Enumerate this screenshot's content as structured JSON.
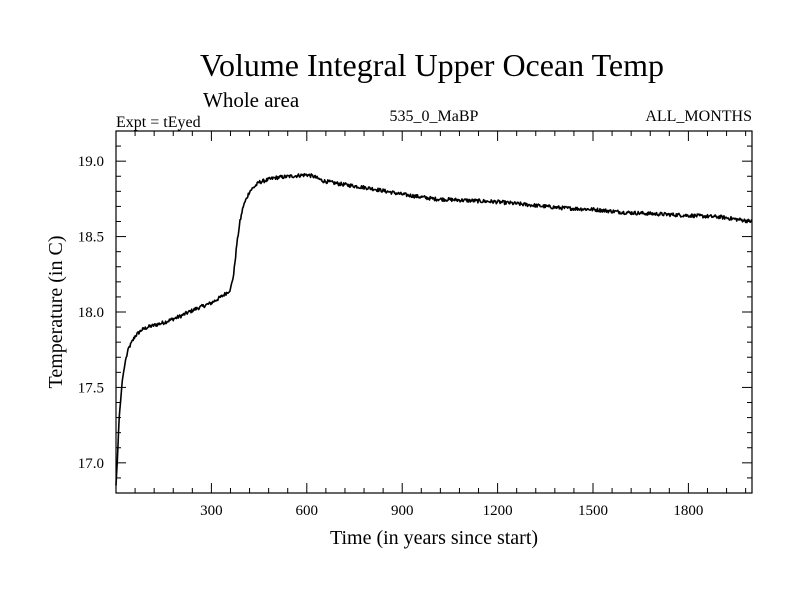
{
  "chart_data": {
    "type": "line",
    "title": "Volume Integral Upper Ocean Temp",
    "subtitle": "Whole area",
    "annotations": {
      "left": "Expt = tEyed",
      "center": "535_0_MaBP",
      "right": "ALL_MONTHS"
    },
    "xlabel": "Time (in years since start)",
    "ylabel": "Temperature (in C)",
    "xlim": [
      0,
      2000
    ],
    "ylim": [
      16.8,
      19.2
    ],
    "x_ticks": [
      300,
      600,
      900,
      1200,
      1500,
      1800
    ],
    "x_tick_labels": [
      "300",
      "600",
      "900",
      "1200",
      "1500",
      "1800"
    ],
    "y_ticks": [
      17.0,
      17.5,
      18.0,
      18.5,
      19.0
    ],
    "y_tick_labels": [
      "17.0",
      "17.5",
      "18.0",
      "18.5",
      "19.0"
    ],
    "series": [
      {
        "name": "Temperature",
        "color": "#000000",
        "x": [
          0,
          5,
          10,
          20,
          30,
          40,
          60,
          80,
          100,
          150,
          200,
          250,
          300,
          330,
          350,
          360,
          370,
          380,
          390,
          400,
          420,
          450,
          500,
          550,
          600,
          620,
          650,
          700,
          800,
          900,
          1000,
          1100,
          1200,
          1300,
          1400,
          1500,
          1600,
          1700,
          1800,
          1900,
          2000
        ],
        "values": [
          16.85,
          17.05,
          17.3,
          17.55,
          17.68,
          17.76,
          17.84,
          17.88,
          17.9,
          17.93,
          17.97,
          18.02,
          18.06,
          18.1,
          18.13,
          18.15,
          18.25,
          18.45,
          18.6,
          18.7,
          18.8,
          18.86,
          18.89,
          18.9,
          18.91,
          18.9,
          18.87,
          18.85,
          18.82,
          18.78,
          18.75,
          18.74,
          18.73,
          18.71,
          18.69,
          18.68,
          18.66,
          18.65,
          18.64,
          18.63,
          18.6
        ]
      }
    ]
  }
}
